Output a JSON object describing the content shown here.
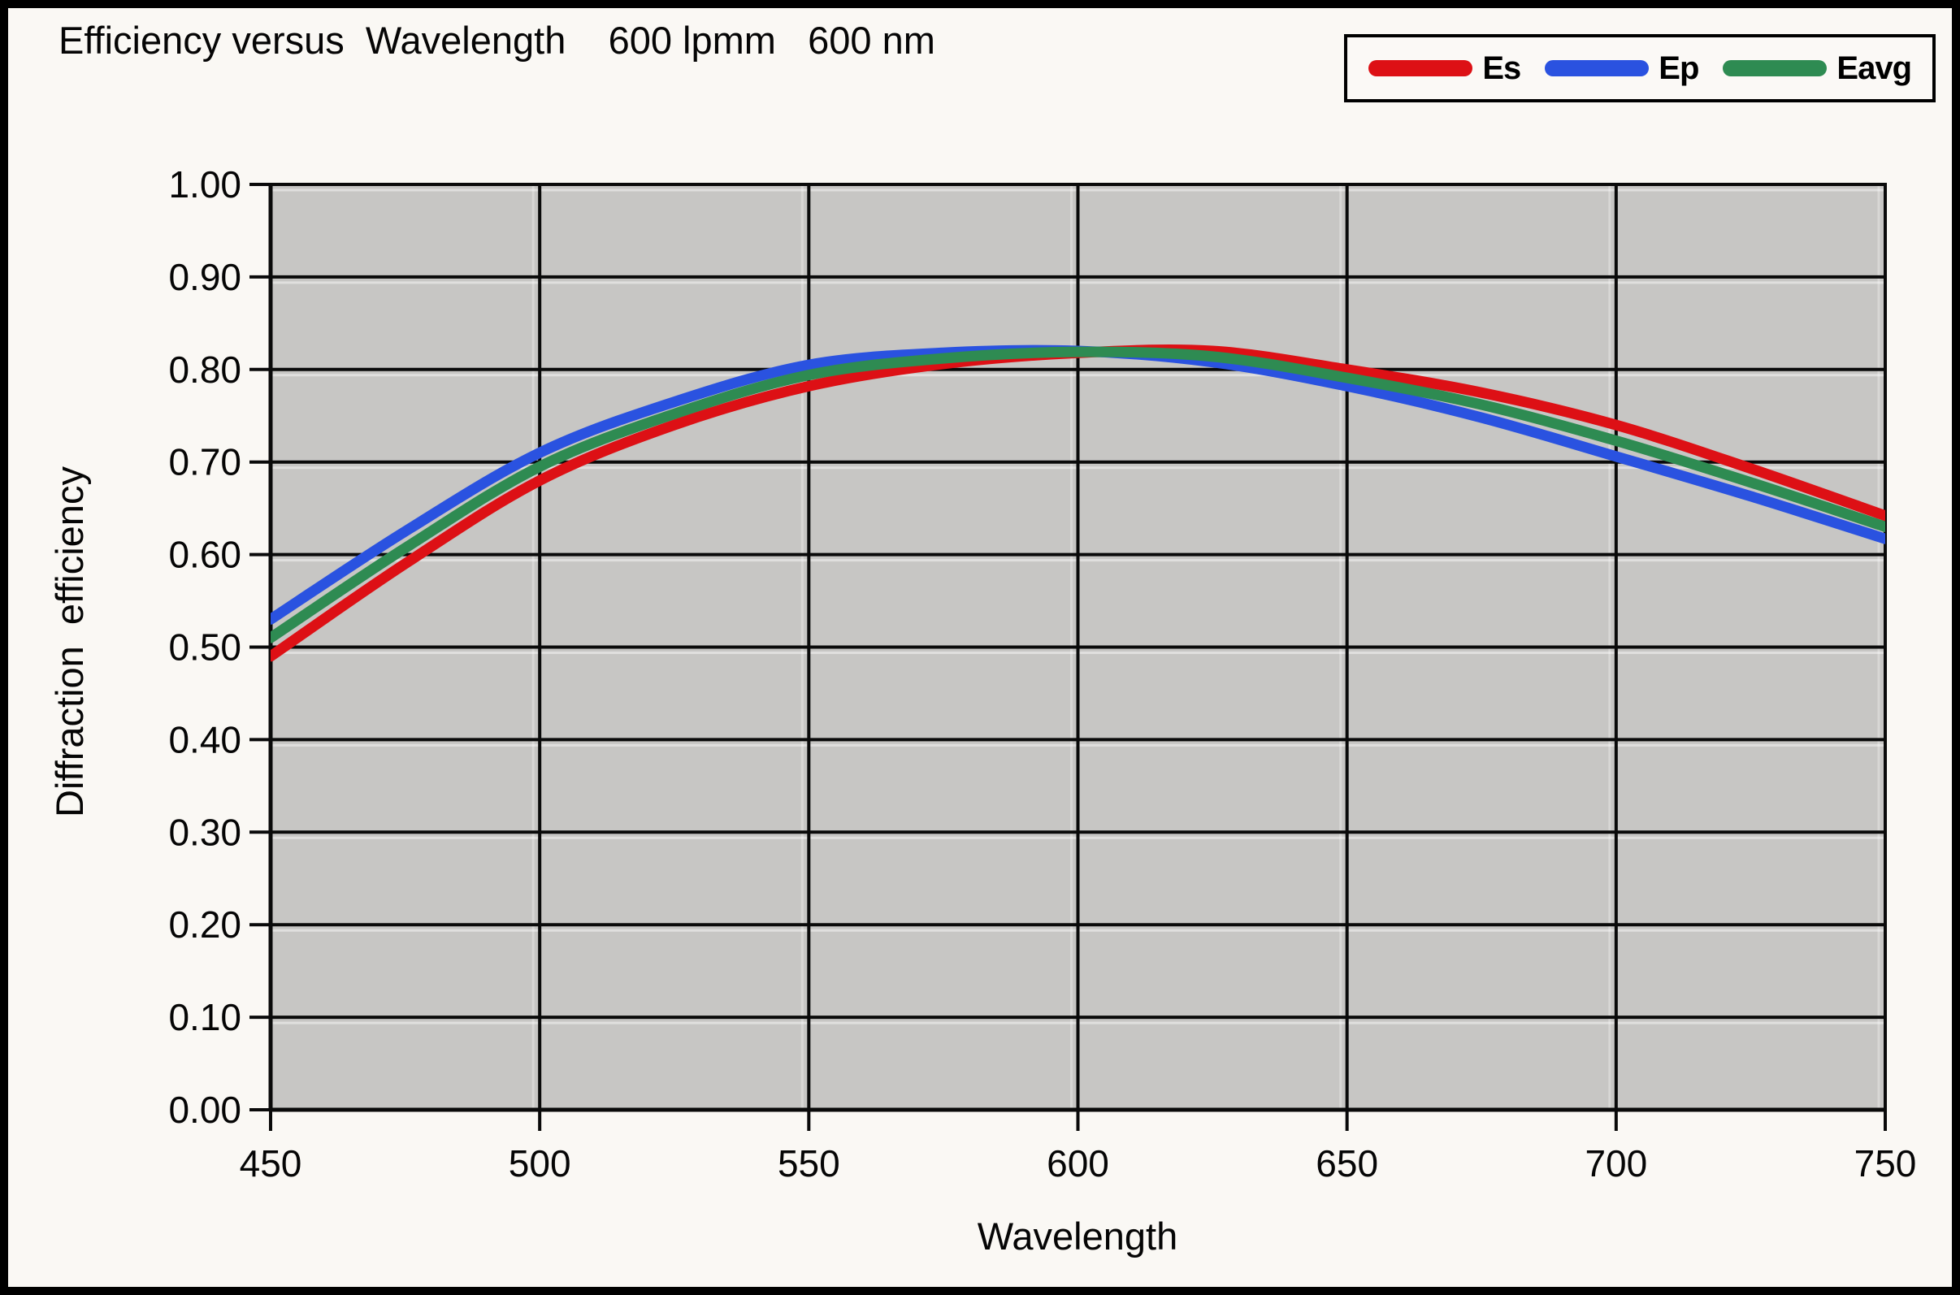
{
  "title": "Efficiency versus  Wavelength    600 lpmm   600 nm",
  "chart_data": {
    "type": "line",
    "title": "Efficiency versus Wavelength 600 lpmm 600 nm",
    "xlabel": "Wavelength",
    "ylabel": "Diffraction  efficiency",
    "xlim": [
      450,
      750
    ],
    "ylim": [
      0.0,
      1.0
    ],
    "xticks": [
      450,
      500,
      550,
      600,
      650,
      700,
      750
    ],
    "yticks": [
      "1.00",
      "0.90",
      "0.80",
      "0.70",
      "0.60",
      "0.50",
      "0.40",
      "0.30",
      "0.20",
      "0.10",
      "0.00"
    ],
    "grid": true,
    "legend_position": "top-right",
    "plot_bg_color": "#c7c6c4",
    "grid_color": "#0a0a0a",
    "x": [
      450,
      475,
      500,
      525,
      550,
      575,
      600,
      625,
      650,
      675,
      700,
      725,
      750
    ],
    "series": [
      {
        "name": "Es",
        "color": "#dd1015",
        "values": [
          0.49,
          0.59,
          0.68,
          0.74,
          0.782,
          0.806,
          0.818,
          0.82,
          0.8,
          0.775,
          0.74,
          0.693,
          0.642
        ]
      },
      {
        "name": "Ep",
        "color": "#2a52e0",
        "values": [
          0.53,
          0.625,
          0.71,
          0.765,
          0.805,
          0.818,
          0.82,
          0.808,
          0.782,
          0.748,
          0.706,
          0.663,
          0.617
        ]
      },
      {
        "name": "Eavg",
        "color": "#2e8b52",
        "values": [
          0.51,
          0.607,
          0.695,
          0.752,
          0.794,
          0.812,
          0.819,
          0.814,
          0.791,
          0.762,
          0.723,
          0.678,
          0.63
        ]
      }
    ]
  }
}
